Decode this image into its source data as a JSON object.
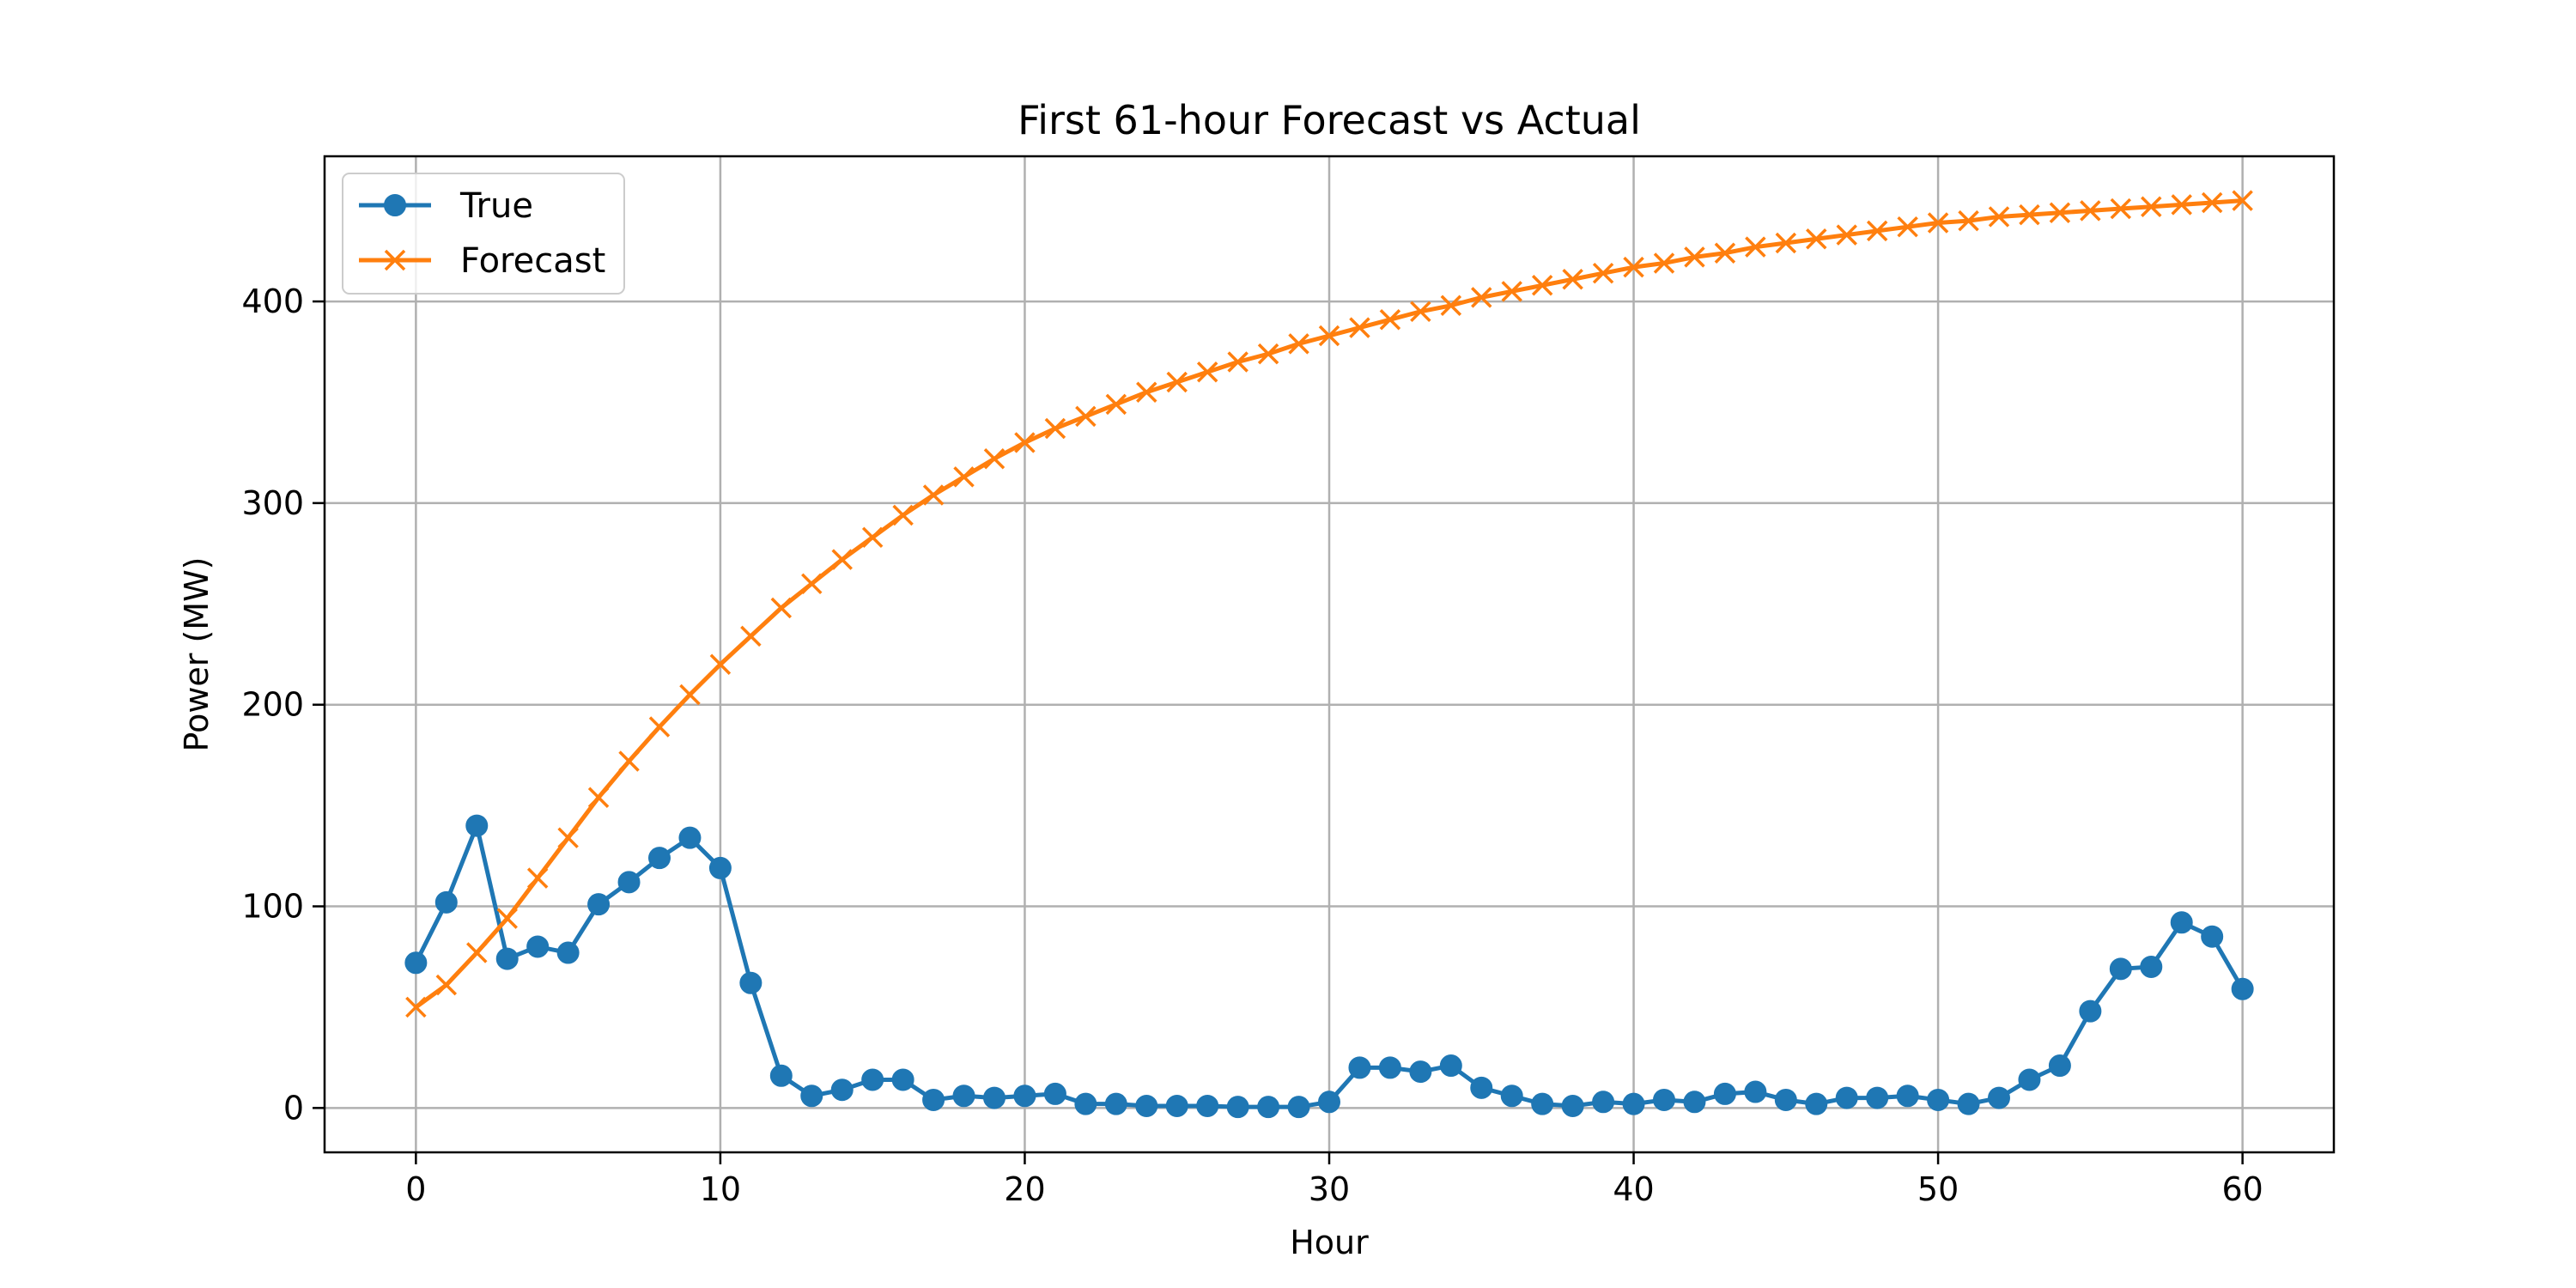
{
  "chart_data": {
    "type": "line",
    "title": "First 61-hour Forecast vs Actual",
    "xlabel": "Hour",
    "ylabel": "Power (MW)",
    "xlim": [
      -3,
      63
    ],
    "ylim": [
      -22,
      472
    ],
    "xticks": [
      0,
      10,
      20,
      30,
      40,
      50,
      60
    ],
    "yticks": [
      0,
      100,
      200,
      300,
      400
    ],
    "grid": true,
    "legend_position": "top-left",
    "x": [
      0,
      1,
      2,
      3,
      4,
      5,
      6,
      7,
      8,
      9,
      10,
      11,
      12,
      13,
      14,
      15,
      16,
      17,
      18,
      19,
      20,
      21,
      22,
      23,
      24,
      25,
      26,
      27,
      28,
      29,
      30,
      31,
      32,
      33,
      34,
      35,
      36,
      37,
      38,
      39,
      40,
      41,
      42,
      43,
      44,
      45,
      46,
      47,
      48,
      49,
      50,
      51,
      52,
      53,
      54,
      55,
      56,
      57,
      58,
      59,
      60
    ],
    "series": [
      {
        "name": "True",
        "color": "#1f77b4",
        "marker": "circle",
        "values": [
          72,
          102,
          140,
          74,
          80,
          77,
          101,
          112,
          124,
          134,
          119,
          62,
          16,
          6,
          9,
          14,
          14,
          4,
          6,
          5,
          6,
          7,
          2,
          2,
          1,
          1,
          1,
          0.5,
          0.5,
          0.5,
          3,
          20,
          20,
          18,
          21,
          10,
          6,
          2,
          1,
          3,
          2,
          4,
          3,
          7,
          8,
          4,
          2,
          5,
          5,
          6,
          4,
          2,
          5,
          14,
          21,
          48,
          69,
          70,
          92,
          85,
          59
        ]
      },
      {
        "name": "Forecast",
        "color": "#ff7f0e",
        "marker": "x",
        "values": [
          50,
          61,
          77,
          94,
          114,
          134,
          154,
          172,
          189,
          205,
          220,
          234,
          248,
          260,
          272,
          283,
          294,
          304,
          313,
          322,
          330,
          337,
          343,
          349,
          355,
          360,
          365,
          370,
          374,
          379,
          383,
          387,
          391,
          395,
          398,
          402,
          405,
          408,
          411,
          414,
          417,
          419,
          422,
          424,
          427,
          429,
          431,
          433,
          435,
          437,
          439,
          440,
          442,
          443,
          444,
          445,
          446,
          447,
          448,
          449,
          450
        ]
      }
    ]
  }
}
